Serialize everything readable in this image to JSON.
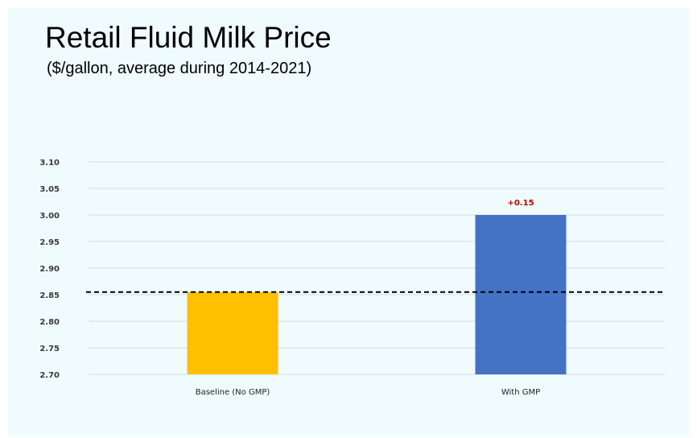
{
  "header": {
    "title": "Retail Fluid Milk Price",
    "subtitle": "($/gallon, average during 2014-2021)"
  },
  "chart_data": {
    "type": "bar",
    "title": "Retail Fluid Milk Price",
    "subtitle": "($/gallon, average during 2014-2021)",
    "categories": [
      "Baseline (No GMP)",
      "With GMP"
    ],
    "values": [
      2.855,
      3.0
    ],
    "colors": [
      "#ffc000",
      "#4472c4"
    ],
    "ylim": [
      2.7,
      3.1
    ],
    "yticks": [
      "2.70",
      "2.75",
      "2.80",
      "2.85",
      "2.90",
      "2.95",
      "3.00",
      "3.05",
      "3.10"
    ],
    "grid": true,
    "data_labels": [
      null,
      "+0.15"
    ],
    "data_label_color": "#c00000",
    "reference_line": {
      "value": 2.855,
      "style": "dashed",
      "color": "#000000"
    }
  }
}
